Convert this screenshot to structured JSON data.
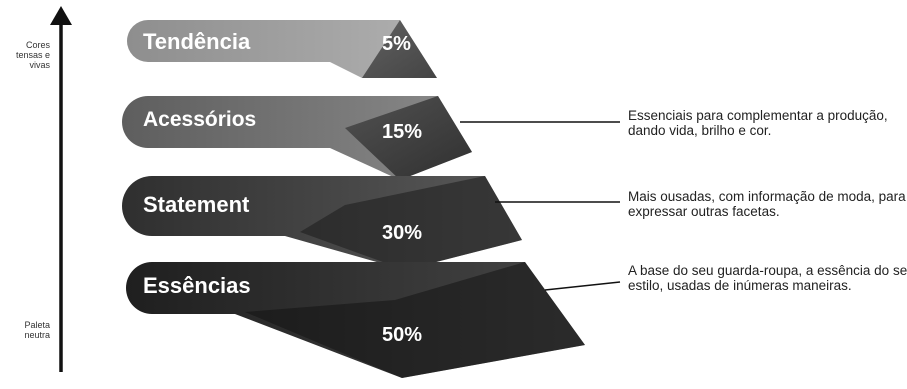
{
  "axis": {
    "top_label": "Cores tensas e vivas",
    "bottom_label": "Paleta neutra"
  },
  "tiers": [
    {
      "label": "Tendência",
      "percent": "5%",
      "description": ""
    },
    {
      "label": "Acessórios",
      "percent": "15%",
      "description": "Essenciais para complementar a produção, dando vida, brilho e cor."
    },
    {
      "label": "Statement",
      "percent": "30%",
      "description": "Mais ousadas, com informação de moda, para expressar outras facetas."
    },
    {
      "label": "Essências",
      "percent": "50%",
      "description": "A base do seu guarda-roupa, a essência do seu estilo, usadas de inúmeras maneiras."
    }
  ],
  "colors": {
    "tier1": "#9a9a9a",
    "tier2": "#6f6f6f",
    "tier3": "#454545",
    "tier4": "#2a2a2a",
    "arrow": "#111111"
  }
}
